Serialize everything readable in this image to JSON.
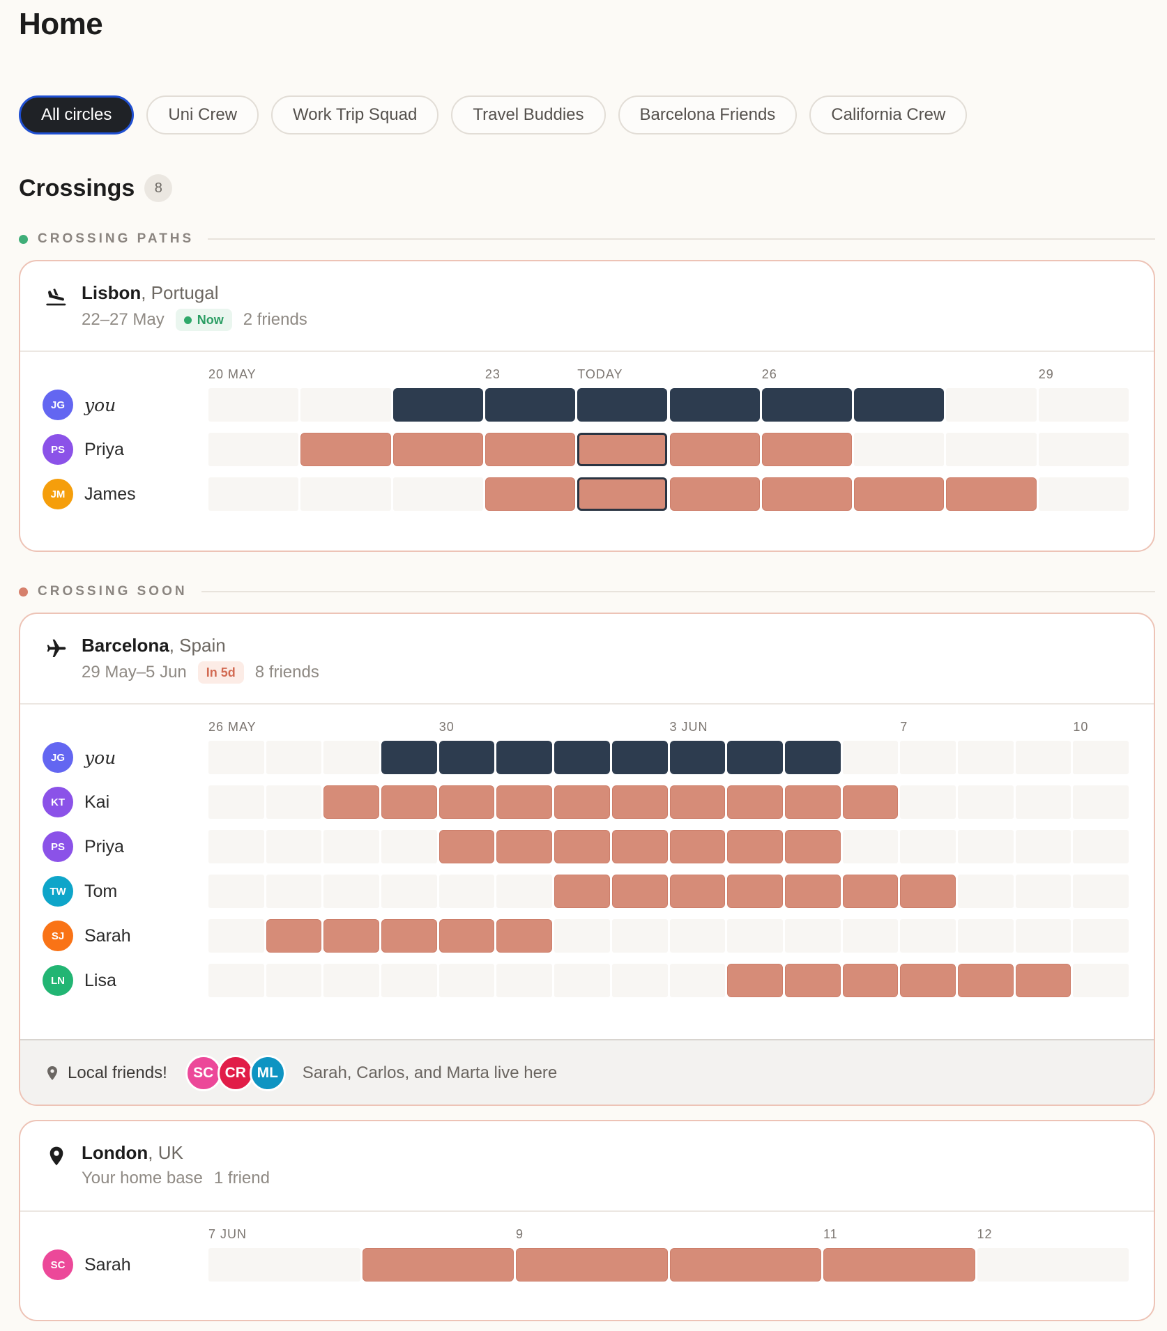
{
  "page": {
    "title": "Home"
  },
  "circles": [
    {
      "label": "All circles",
      "active": true
    },
    {
      "label": "Uni Crew",
      "active": false
    },
    {
      "label": "Work Trip Squad",
      "active": false
    },
    {
      "label": "Travel Buddies",
      "active": false
    },
    {
      "label": "Barcelona Friends",
      "active": false
    },
    {
      "label": "California Crew",
      "active": false
    }
  ],
  "crossings": {
    "title": "Crossings",
    "count": "8"
  },
  "sections": {
    "paths": {
      "label": "CROSSING PATHS",
      "color": "#3fae78"
    },
    "soon": {
      "label": "CROSSING SOON",
      "color": "#d6806c"
    }
  },
  "colors": {
    "you": "#2d3c4f",
    "friend": "#d68c78",
    "empty": "#f8f6f3",
    "card_border": "#edc3b6"
  },
  "cards": [
    {
      "icon": "plane-landing-icon",
      "city": "Lisbon",
      "country": ", Portugal",
      "dates": "22–27 May",
      "badge": "Now",
      "badge_type": "now",
      "friends": "2 friends",
      "num_days": 10,
      "tick_labels": [
        {
          "day": 0,
          "label": "20 MAY"
        },
        {
          "day": 3,
          "label": "23"
        },
        {
          "day": 4,
          "label": "TODAY"
        },
        {
          "day": 6,
          "label": "26"
        },
        {
          "day": 9,
          "label": "29"
        }
      ],
      "today_index": 4,
      "people": [
        {
          "initials": "JG",
          "name": "you",
          "is_you": true,
          "color": "#6366f1",
          "start": 2,
          "end": 7
        },
        {
          "initials": "PS",
          "name": "Priya",
          "is_you": false,
          "color": "#8b52e8",
          "start": 1,
          "end": 6
        },
        {
          "initials": "JM",
          "name": "James",
          "is_you": false,
          "color": "#f59e0b",
          "start": 3,
          "end": 8
        }
      ]
    },
    {
      "icon": "plane-icon",
      "city": "Barcelona",
      "country": ", Spain",
      "dates": "29 May–5 Jun",
      "badge": "In 5d",
      "badge_type": "soon",
      "friends": "8 friends",
      "num_days": 16,
      "tick_labels": [
        {
          "day": 0,
          "label": "26 MAY"
        },
        {
          "day": 4,
          "label": "30"
        },
        {
          "day": 8,
          "label": "3 JUN"
        },
        {
          "day": 12,
          "label": "7"
        },
        {
          "day": 15,
          "label": "10"
        }
      ],
      "today_index": -1,
      "people": [
        {
          "initials": "JG",
          "name": "you",
          "is_you": true,
          "color": "#6366f1",
          "start": 3,
          "end": 10
        },
        {
          "initials": "KT",
          "name": "Kai",
          "is_you": false,
          "color": "#8b52e8",
          "start": 2,
          "end": 11
        },
        {
          "initials": "PS",
          "name": "Priya",
          "is_you": false,
          "color": "#8b52e8",
          "start": 4,
          "end": 10
        },
        {
          "initials": "TW",
          "name": "Tom",
          "is_you": false,
          "color": "#0ea5c9",
          "start": 6,
          "end": 12
        },
        {
          "initials": "SJ",
          "name": "Sarah",
          "is_you": false,
          "color": "#f97316",
          "start": 1,
          "end": 5
        },
        {
          "initials": "LN",
          "name": "Lisa",
          "is_you": false,
          "color": "#22b573",
          "start": 9,
          "end": 14
        }
      ],
      "local": {
        "label": "Local friends!",
        "avatars": [
          {
            "initials": "SC",
            "color": "#ec4899"
          },
          {
            "initials": "CR",
            "color": "#e11d48"
          },
          {
            "initials": "ML",
            "color": "#0e94c2"
          }
        ],
        "note": "Sarah, Carlos, and Marta live here"
      }
    },
    {
      "icon": "map-pin-icon",
      "city": "London",
      "country": ", UK",
      "dates": "Your home base",
      "badge": "",
      "badge_type": "",
      "friends": "1 friend",
      "num_days": 6,
      "tick_labels": [
        {
          "day": 0,
          "label": "7 JUN"
        },
        {
          "day": 2,
          "label": "9"
        },
        {
          "day": 4,
          "label": "11"
        },
        {
          "day": 5,
          "label": "12"
        }
      ],
      "today_index": -1,
      "people": [
        {
          "initials": "SC",
          "name": "Sarah",
          "is_you": false,
          "color": "#ec4899",
          "start": 1,
          "end": 4
        }
      ]
    }
  ]
}
